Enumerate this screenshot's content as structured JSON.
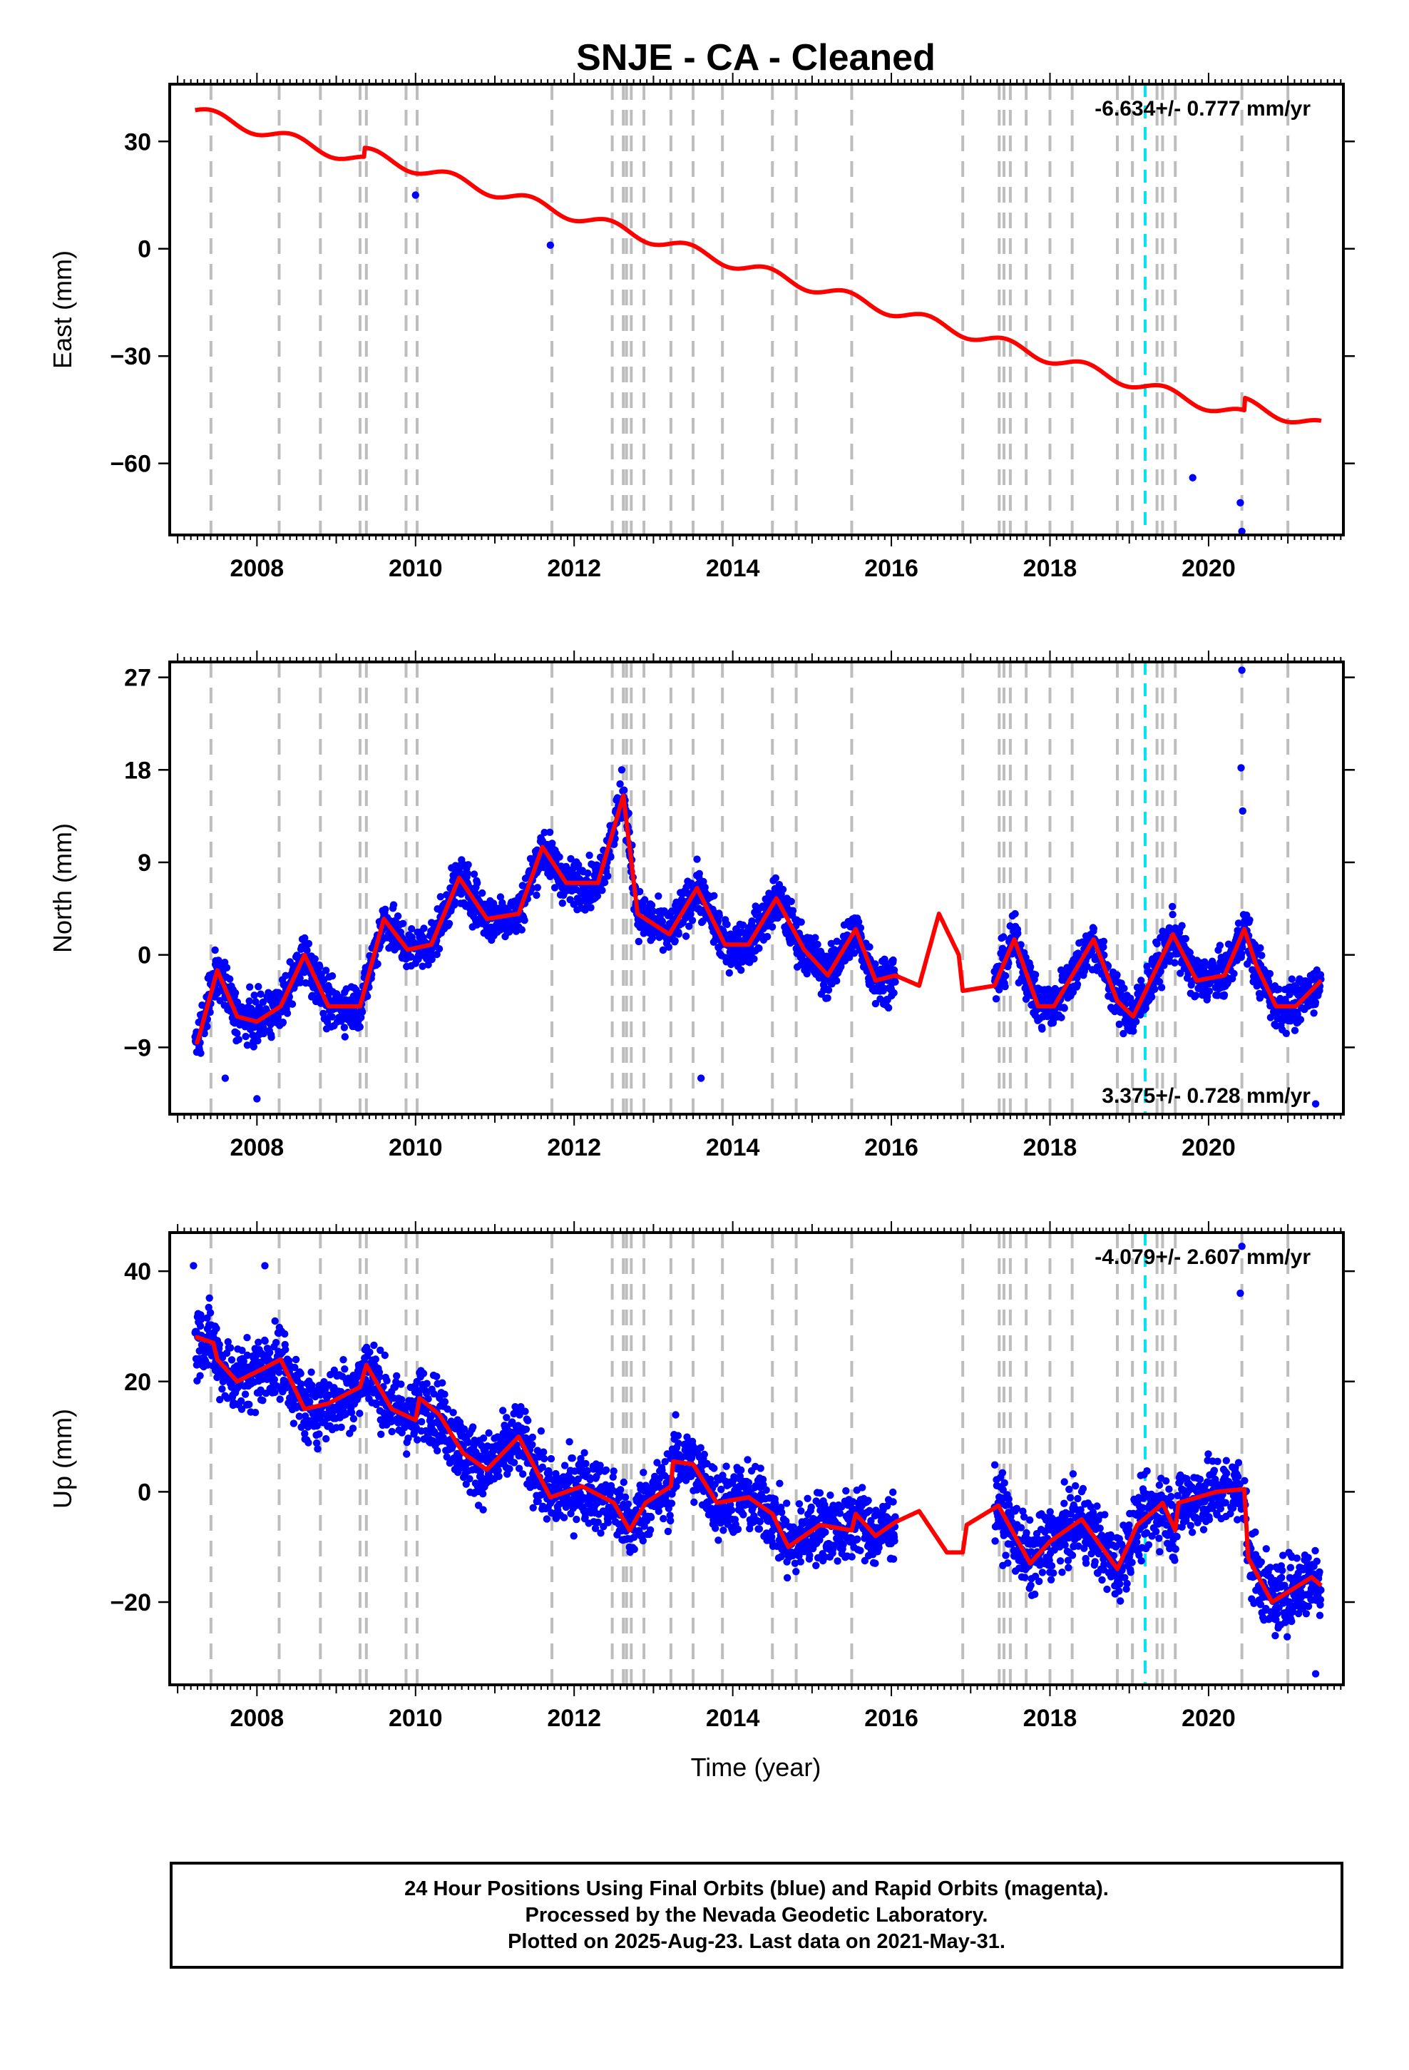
{
  "chart_data": {
    "type": "scatter",
    "title": "SNJE  - CA - Cleaned",
    "xlabel": "Time (year)",
    "x_range": [
      2006.9,
      2021.7
    ],
    "x_ticks": [
      "2008",
      "2010",
      "2012",
      "2014",
      "2016",
      "2018",
      "2020"
    ],
    "colors": {
      "observations": "#0000ff",
      "model": "#ff0000",
      "offset_lines": "#bdbdbd",
      "highlight_line": "#00e5ee"
    },
    "equipment_change_lines": [
      2007.42,
      2008.28,
      2008.8,
      2009.3,
      2009.38,
      2009.88,
      2010.02,
      2011.72,
      2012.48,
      2012.62,
      2012.66,
      2012.72,
      2012.88,
      2013.22,
      2013.5,
      2013.87,
      2014.5,
      2014.8,
      2015.5,
      2016.9,
      2017.36,
      2017.42,
      2017.5,
      2017.7,
      2018.0,
      2018.28,
      2018.85,
      2019.04,
      2019.35,
      2019.42,
      2019.58,
      2020.42,
      2021.0
    ],
    "highlight_line_x": 2019.2,
    "data_gap": [
      2016.05,
      2017.3
    ],
    "panels": [
      {
        "id": "east",
        "ylabel": "East (mm)",
        "ylim": [
          -80,
          46
        ],
        "yticks": [
          30,
          0,
          -30,
          -60
        ],
        "rate_label": "-6.634+/- 0.777 mm/yr",
        "rate_position": "top-right",
        "model": {
          "trend_at_2007": 40,
          "trend_rate": -6.634,
          "seasonal_amplitude": 1.6,
          "noise": 1.8,
          "steps": [
            {
              "x": 2009.35,
              "dy": 2.5
            },
            {
              "x": 2020.45,
              "dy": 3.5
            }
          ]
        },
        "outliers": [
          {
            "x": 2010.0,
            "y": 15
          },
          {
            "x": 2011.7,
            "y": 1
          },
          {
            "x": 2020.4,
            "y": -71
          },
          {
            "x": 2020.42,
            "y": -79
          },
          {
            "x": 2019.8,
            "y": -64
          }
        ]
      },
      {
        "id": "north",
        "ylabel": "North (mm)",
        "ylim": [
          -15.5,
          28.5
        ],
        "yticks": [
          27,
          18,
          9,
          0,
          -9
        ],
        "rate_label": "3.375+/- 0.728 mm/yr",
        "rate_position": "bottom-right",
        "model_curve": [
          [
            2007.25,
            -8.5
          ],
          [
            2007.5,
            -1.5
          ],
          [
            2007.75,
            -6.0
          ],
          [
            2008.0,
            -6.5
          ],
          [
            2008.3,
            -5.0
          ],
          [
            2008.6,
            0.0
          ],
          [
            2008.9,
            -5.0
          ],
          [
            2009.3,
            -5.0
          ],
          [
            2009.6,
            3.5
          ],
          [
            2009.9,
            0.5
          ],
          [
            2010.2,
            1.0
          ],
          [
            2010.55,
            7.5
          ],
          [
            2010.9,
            3.5
          ],
          [
            2011.3,
            4.0
          ],
          [
            2011.6,
            10.5
          ],
          [
            2011.9,
            7.0
          ],
          [
            2012.3,
            7.0
          ],
          [
            2012.62,
            15.5
          ],
          [
            2012.8,
            4.0
          ],
          [
            2013.2,
            2.0
          ],
          [
            2013.55,
            6.5
          ],
          [
            2013.9,
            1.0
          ],
          [
            2014.2,
            1.0
          ],
          [
            2014.55,
            5.5
          ],
          [
            2014.9,
            0.5
          ],
          [
            2015.2,
            -2.0
          ],
          [
            2015.55,
            2.5
          ],
          [
            2015.8,
            -2.5
          ],
          [
            2016.05,
            -2.0
          ],
          [
            2016.35,
            -3.0
          ],
          [
            2016.6,
            4.0
          ],
          [
            2016.85,
            0.0
          ],
          [
            2016.9,
            -3.5
          ],
          [
            2017.3,
            -3.0
          ],
          [
            2017.55,
            1.5
          ],
          [
            2017.85,
            -5.0
          ],
          [
            2018.05,
            -5.0
          ],
          [
            2018.55,
            1.5
          ],
          [
            2018.85,
            -4.5
          ],
          [
            2019.05,
            -6.0
          ],
          [
            2019.55,
            2.0
          ],
          [
            2019.85,
            -2.5
          ],
          [
            2020.2,
            -2.0
          ],
          [
            2020.45,
            2.5
          ],
          [
            2020.6,
            -1.0
          ],
          [
            2020.85,
            -5.0
          ],
          [
            2021.1,
            -5.0
          ],
          [
            2021.42,
            -2.5
          ]
        ],
        "noise": 1.6,
        "outliers": [
          {
            "x": 2020.42,
            "y": 27.7
          },
          {
            "x": 2020.41,
            "y": 18.2
          },
          {
            "x": 2020.43,
            "y": 14
          },
          {
            "x": 2012.6,
            "y": 18
          },
          {
            "x": 2008.0,
            "y": -14
          },
          {
            "x": 2021.35,
            "y": -14.5
          },
          {
            "x": 2013.6,
            "y": -12
          },
          {
            "x": 2007.6,
            "y": -12
          }
        ]
      },
      {
        "id": "up",
        "ylabel": "Up (mm)",
        "ylim": [
          -35,
          47
        ],
        "yticks": [
          40,
          20,
          0,
          -20
        ],
        "rate_label": "-4.079+/- 2.607 mm/yr",
        "rate_position": "top-right",
        "model_curve": [
          [
            2007.25,
            28
          ],
          [
            2007.45,
            27
          ],
          [
            2007.5,
            24
          ],
          [
            2007.75,
            20
          ],
          [
            2008.1,
            22.5
          ],
          [
            2008.3,
            24
          ],
          [
            2008.6,
            15
          ],
          [
            2008.9,
            16
          ],
          [
            2009.3,
            19
          ],
          [
            2009.38,
            23
          ],
          [
            2009.7,
            15
          ],
          [
            2010.0,
            13
          ],
          [
            2010.05,
            17
          ],
          [
            2010.3,
            14
          ],
          [
            2010.6,
            7
          ],
          [
            2010.9,
            4
          ],
          [
            2011.3,
            10
          ],
          [
            2011.7,
            -1
          ],
          [
            2012.1,
            1
          ],
          [
            2012.5,
            -2
          ],
          [
            2012.7,
            -7
          ],
          [
            2012.9,
            -2
          ],
          [
            2013.22,
            1
          ],
          [
            2013.25,
            5.5
          ],
          [
            2013.5,
            5
          ],
          [
            2013.8,
            -2
          ],
          [
            2014.2,
            -1
          ],
          [
            2014.5,
            -4
          ],
          [
            2014.7,
            -10
          ],
          [
            2015.1,
            -6
          ],
          [
            2015.5,
            -7
          ],
          [
            2015.55,
            -4
          ],
          [
            2015.8,
            -8
          ],
          [
            2016.05,
            -5.5
          ],
          [
            2016.35,
            -3.5
          ],
          [
            2016.7,
            -11
          ],
          [
            2016.9,
            -11
          ],
          [
            2016.95,
            -6
          ],
          [
            2017.35,
            -2.5
          ],
          [
            2017.75,
            -13
          ],
          [
            2018.0,
            -9
          ],
          [
            2018.4,
            -5
          ],
          [
            2018.85,
            -14
          ],
          [
            2019.1,
            -6
          ],
          [
            2019.35,
            -3
          ],
          [
            2019.42,
            -2
          ],
          [
            2019.58,
            -7
          ],
          [
            2019.62,
            -2
          ],
          [
            2020.1,
            0
          ],
          [
            2020.45,
            0.5
          ],
          [
            2020.5,
            -12
          ],
          [
            2020.8,
            -20
          ],
          [
            2021.3,
            -15.5
          ],
          [
            2021.42,
            -17
          ]
        ],
        "noise": 4.5,
        "outliers": [
          {
            "x": 2020.42,
            "y": 44.5
          },
          {
            "x": 2020.4,
            "y": 36
          },
          {
            "x": 2007.2,
            "y": 41
          },
          {
            "x": 2008.1,
            "y": 41
          },
          {
            "x": 2021.35,
            "y": -33
          }
        ]
      }
    ]
  },
  "footer": {
    "line1": "24 Hour Positions Using Final Orbits (blue) and Rapid Orbits (magenta).",
    "line2": "Processed by the Nevada Geodetic Laboratory.",
    "line3": "Plotted on 2025-Aug-23. Last data on 2021-May-31."
  }
}
